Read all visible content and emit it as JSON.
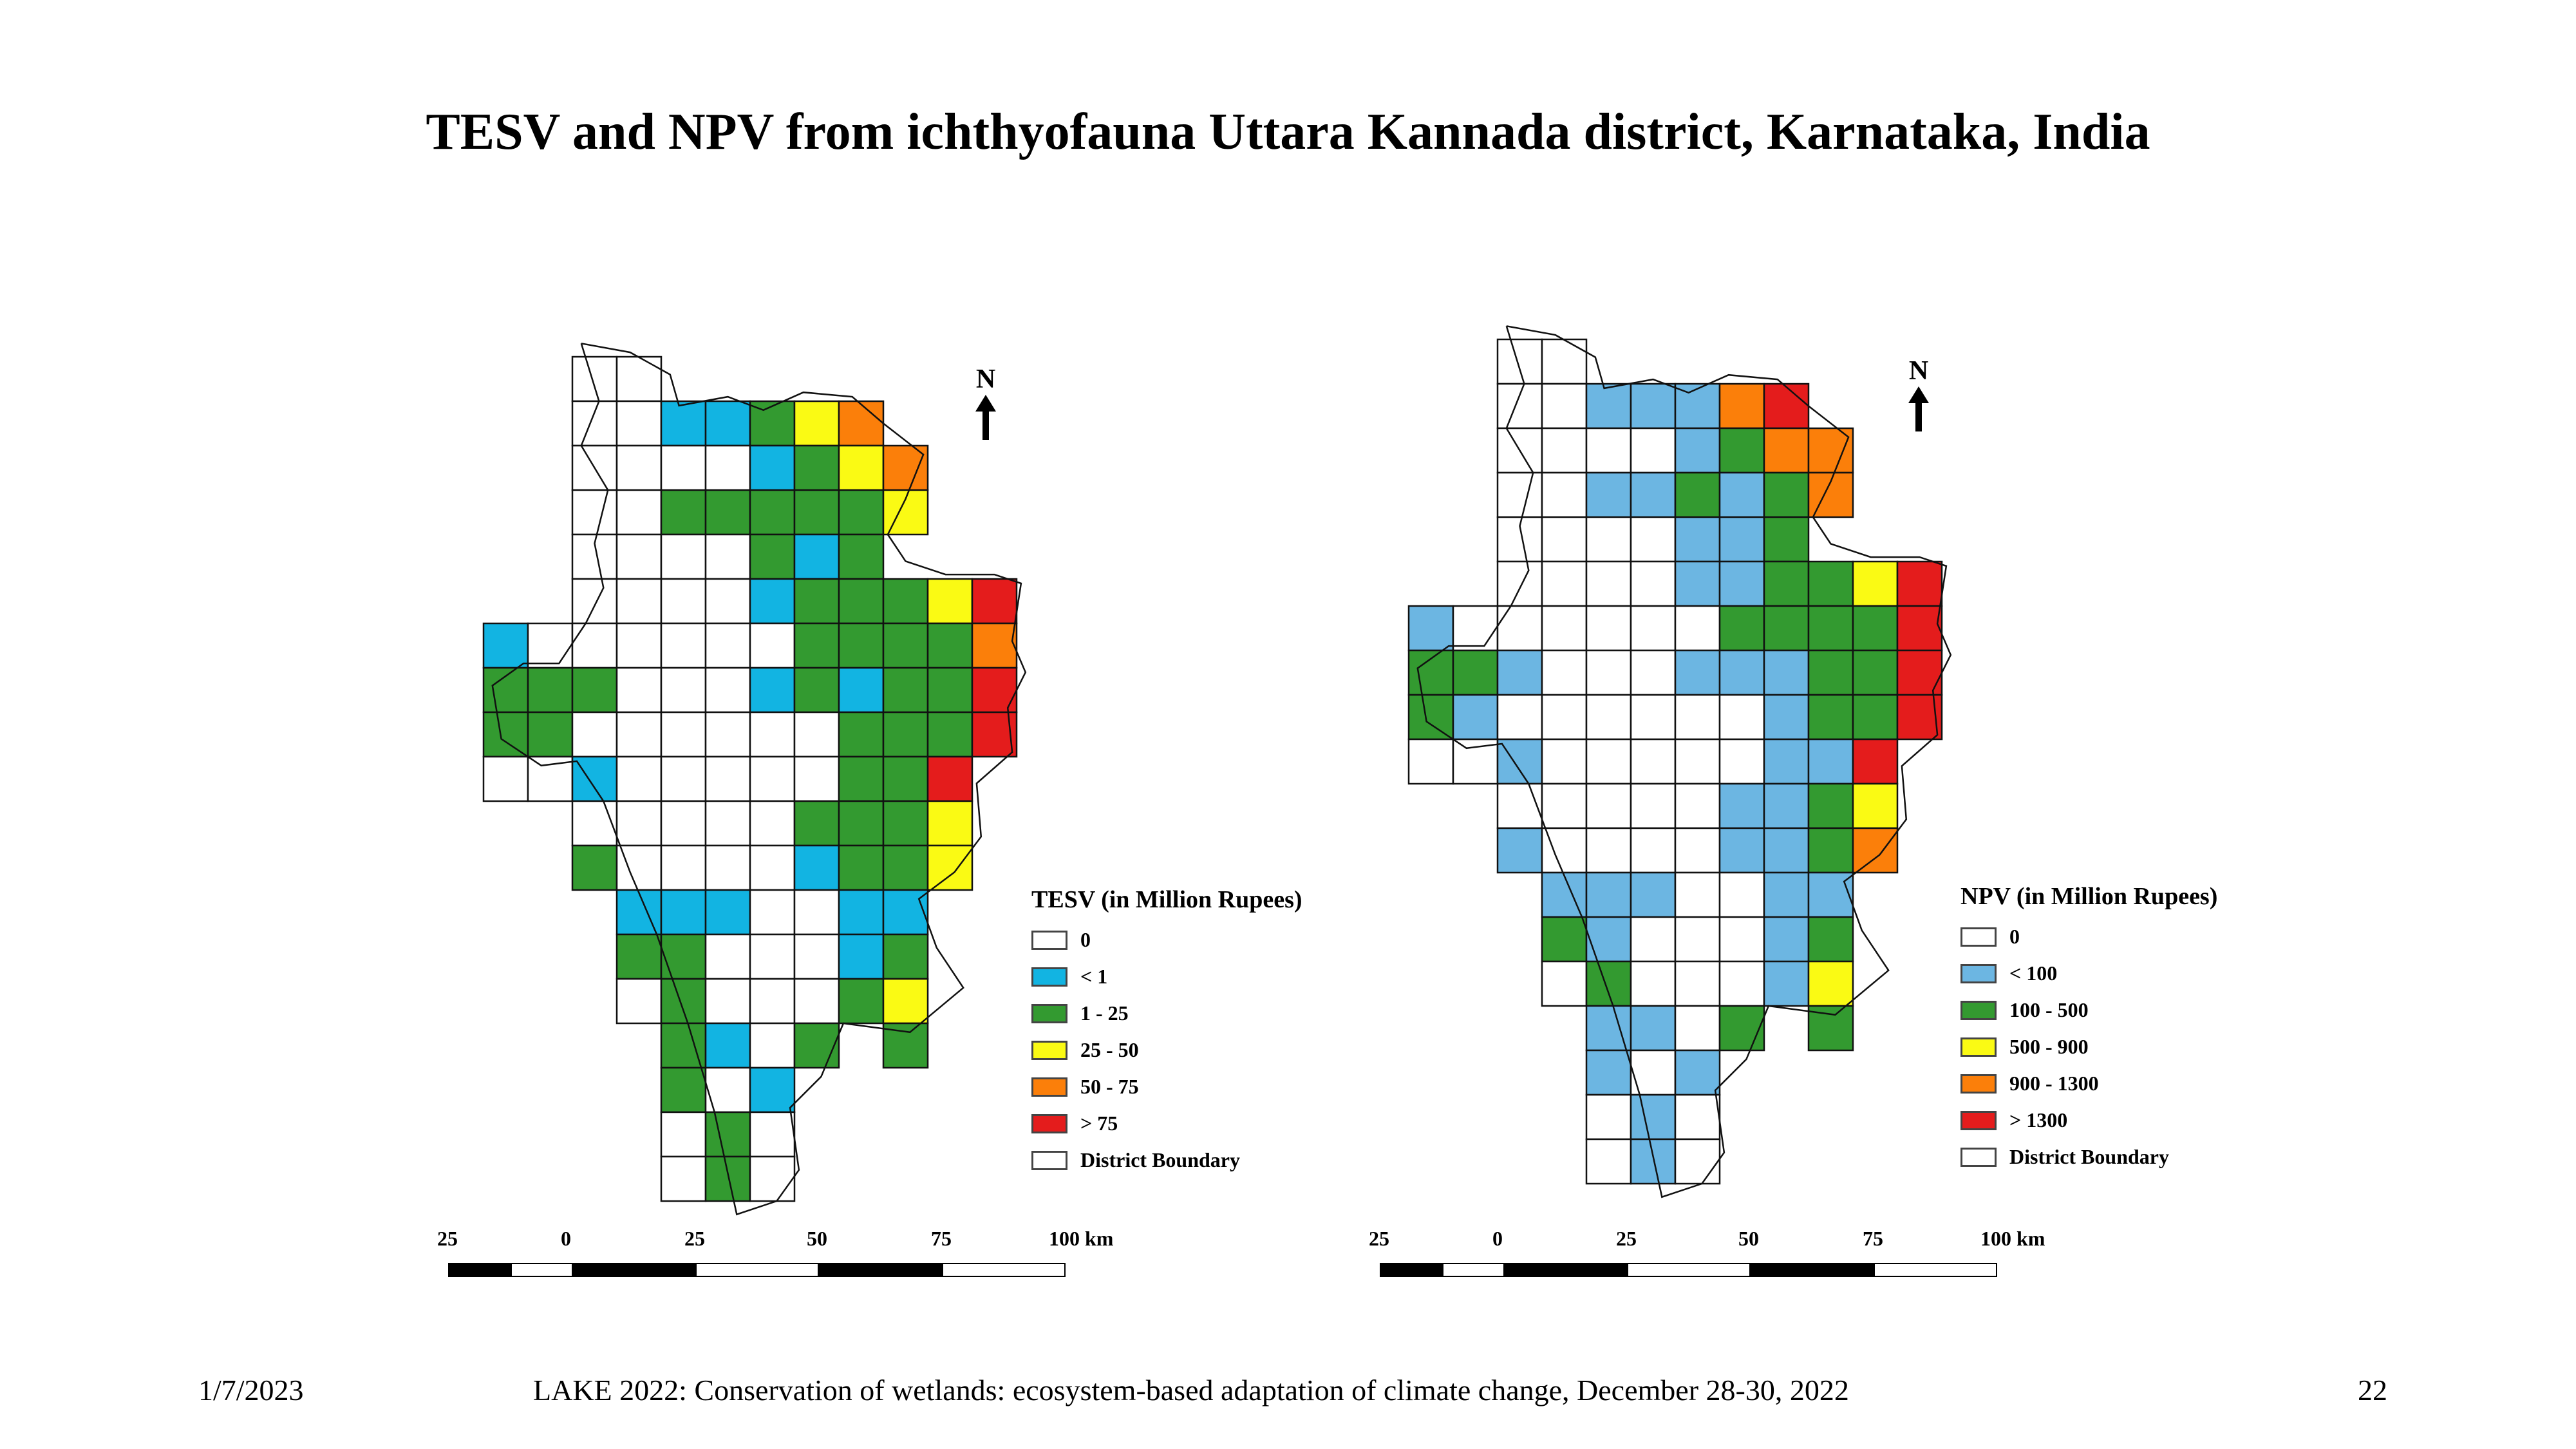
{
  "title": "TESV and NPV from ichthyofauna Uttara Kannada district, Karnataka, India",
  "maps": [
    {
      "legend_title": "TESV (in Million Rupees)",
      "classes": [
        {
          "code": "0",
          "label": "0",
          "color": "#ffffff"
        },
        {
          "code": "b",
          "label": "< 1",
          "color": "#12b4e2"
        },
        {
          "code": "g",
          "label": "1 - 25",
          "color": "#339a30"
        },
        {
          "code": "y",
          "label": "25 - 50",
          "color": "#fafa14"
        },
        {
          "code": "o",
          "label": "50 - 75",
          "color": "#fb7f0a"
        },
        {
          "code": "r",
          "label": "> 75",
          "color": "#e41c1c"
        }
      ],
      "boundary_label": "District Boundary",
      "grid": [
        "..00........",
        "..00bbgyo...",
        "..0000bgyo..",
        "..00gggggy..",
        "..0000gbg...",
        "..0000bgggyr",
        "b000000ggggo",
        "ggg000bgbggr",
        "gg000000gggr",
        "00b00000ggr.",
        "..00000gggy.",
        "..g0000bggy.",
        "...bbb00bb..",
        "...gg000bg..",
        "...0g000gy..",
        "....gb0g.g..",
        "....g0b.....",
        "....0g0.....",
        "....0g0....."
      ]
    },
    {
      "legend_title": "NPV (in Million Rupees)",
      "classes": [
        {
          "code": "0",
          "label": "0",
          "color": "#ffffff"
        },
        {
          "code": "b",
          "label": "< 100",
          "color": "#6cb6e2"
        },
        {
          "code": "g",
          "label": "100 - 500",
          "color": "#339a30"
        },
        {
          "code": "y",
          "label": "500 - 900",
          "color": "#fafa14"
        },
        {
          "code": "o",
          "label": "900 - 1300",
          "color": "#fb7f0a"
        },
        {
          "code": "r",
          "label": "> 1300",
          "color": "#e41c1c"
        }
      ],
      "boundary_label": "District Boundary",
      "grid": [
        "..00........",
        "..00bbbor...",
        "..0000bgoo..",
        "..00bbgbgo..",
        "..0000bbg...",
        "..0000bbggyr",
        "b000000ggggr",
        "ggb000bbbggr",
        "gb000000bggr",
        "00b00000bbr.",
        "..00000bbgy.",
        "..b0000bbgo.",
        "...bbb00bb..",
        "...gb000bg..",
        "...0g000by..",
        "....bb0g.g..",
        "....b0b.....",
        "....0b0.....",
        "....0b0....."
      ]
    }
  ],
  "north_label": "N",
  "scale_labels": [
    "25",
    "0",
    "25",
    "50",
    "75",
    "100 km"
  ],
  "footer": {
    "date": "1/7/2023",
    "conference": "LAKE 2022: Conservation of wetlands: ecosystem-based adaptation of climate change, December 28-30, 2022",
    "page": "22"
  }
}
